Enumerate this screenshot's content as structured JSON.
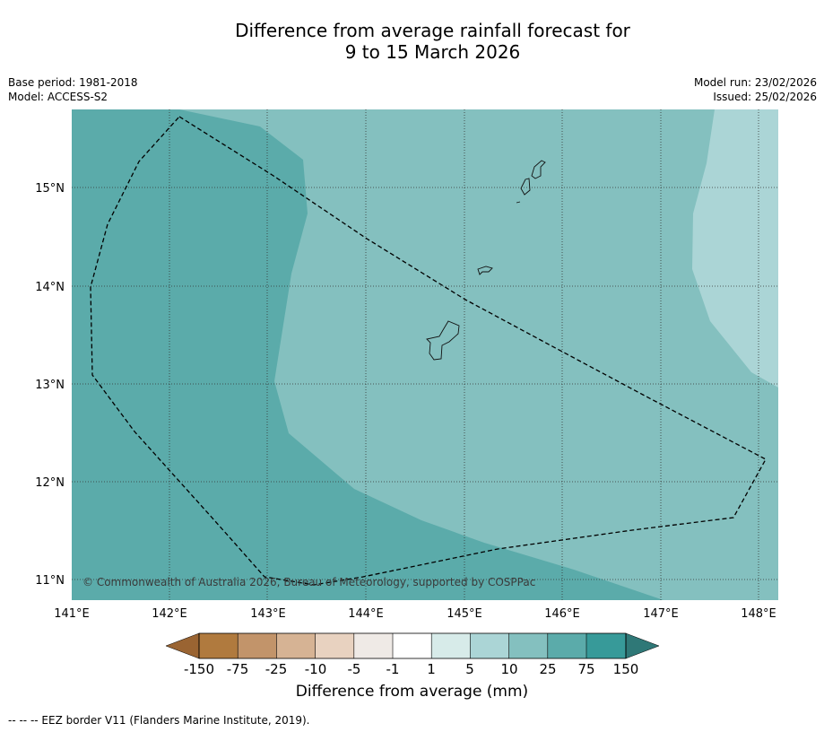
{
  "title_line1": "Difference from average rainfall forecast for",
  "title_line2": "9 to 15 March 2026",
  "base_period": "Base period: 1981-2018",
  "model": "Model: ACCESS-S2",
  "model_run": "Model run: 23/02/2026",
  "issued": "Issued: 25/02/2026",
  "copyright": "© Commonwealth of Australia 2026, Bureau of Meteorology, supported by COSPPac",
  "colorbar": {
    "title": "Difference from average (mm)",
    "ticks": [
      "-150",
      "-75",
      "-25",
      "-10",
      "-5",
      "-1",
      "1",
      "5",
      "10",
      "25",
      "75",
      "150"
    ],
    "colors": [
      "#9a6432",
      "#b07a3e",
      "#c2946a",
      "#d6b394",
      "#e8d2c0",
      "#efeae6",
      "#ffffff",
      "#d7ebe9",
      "#abd5d6",
      "#84c0bf",
      "#5babaa",
      "#379a99",
      "#2f7877"
    ]
  },
  "map": {
    "lon_labels": [
      "141°E",
      "142°E",
      "143°E",
      "144°E",
      "145°E",
      "146°E",
      "147°E",
      "148°E"
    ],
    "lat_labels": [
      "15°N",
      "14°N",
      "13°N",
      "12°N",
      "11°N"
    ]
  },
  "footnote": "--  --  -- EEZ border V11 (Flanders Marine Institute, 2019)."
}
